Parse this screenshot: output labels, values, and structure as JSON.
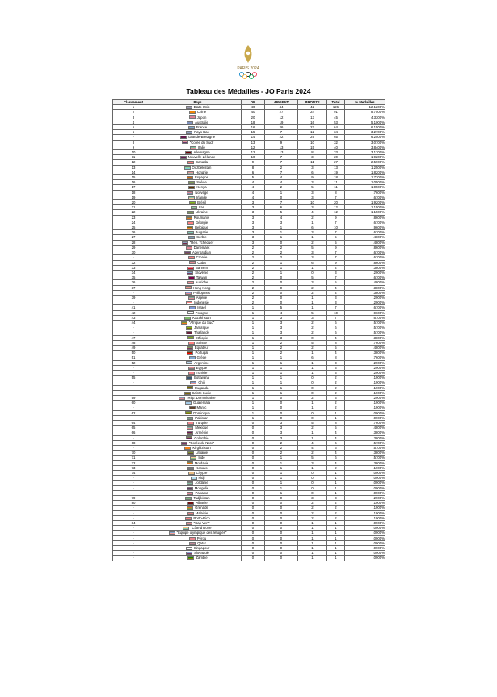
{
  "header": {
    "logo_text": "PARIS 2024",
    "title": "Tableau des Médailles - JO Paris 2024"
  },
  "table": {
    "columns": [
      "Classement",
      "Pays",
      "OR",
      "ARGENT",
      "BRONZE",
      "Total",
      "% Medailles"
    ],
    "rows": [
      [
        "1",
        "Etats-Unis",
        "40",
        "44",
        "42",
        "126",
        "12.1200%"
      ],
      [
        "2",
        "Chine",
        "40",
        "27",
        "24",
        "91",
        "8.7500%"
      ],
      [
        "3",
        "Japon",
        "20",
        "12",
        "13",
        "45",
        "4.3300%"
      ],
      [
        "4",
        "Australie",
        "18",
        "19",
        "16",
        "53",
        "5.1000%"
      ],
      [
        "5",
        "France",
        "16",
        "26",
        "22",
        "64",
        "6.1500%"
      ],
      [
        "6",
        "Pays-Bas",
        "15",
        "7",
        "12",
        "34",
        "3.2700%"
      ],
      [
        "7",
        "Grande-Bretagne",
        "14",
        "22",
        "29",
        "65",
        "6.2500%"
      ],
      [
        "8",
        "\"Corée du Sud\"",
        "13",
        "9",
        "10",
        "32",
        "3.0700%"
      ],
      [
        "9",
        "Italie",
        "12",
        "13",
        "15",
        "40",
        "3.8400%"
      ],
      [
        "10",
        "Allemagne",
        "12",
        "13",
        "8",
        "33",
        "3.1700%"
      ],
      [
        "11",
        "Nouvelle-Zélande",
        "10",
        "7",
        "3",
        "20",
        "1.9200%"
      ],
      [
        "12",
        "Canada",
        "9",
        "7",
        "11",
        "27",
        "2.5900%"
      ],
      [
        "13",
        "Ouzbékistan",
        "8",
        "2",
        "3",
        "13",
        "1.2500%"
      ],
      [
        "14",
        "Hongrie",
        "6",
        "7",
        "6",
        "19",
        "1.8200%"
      ],
      [
        "15",
        "Espagne",
        "5",
        "4",
        "9",
        "18",
        "1.7300%"
      ],
      [
        "16",
        "Suède",
        "4",
        "4",
        "3",
        "11",
        "1.0500%"
      ],
      [
        "17",
        "Kenya",
        "4",
        "2",
        "5",
        "11",
        "1.0500%"
      ],
      [
        "18",
        "Norvège",
        "4",
        "1",
        "3",
        "8",
        ".7600%"
      ],
      [
        "19",
        "Irlande",
        "4",
        "0",
        "3",
        "7",
        ".6700%"
      ],
      [
        "20",
        "Brésil",
        "3",
        "7",
        "10",
        "20",
        "1.9200%"
      ],
      [
        "21",
        "Iran",
        "3",
        "6",
        "3",
        "12",
        "1.1500%"
      ],
      [
        "22",
        "Ukraine",
        "3",
        "5",
        "4",
        "12",
        "1.1500%"
      ],
      [
        "23",
        "Roumanie",
        "3",
        "4",
        "2",
        "9",
        ".8600%"
      ],
      [
        "24",
        "Géorgie",
        "3",
        "3",
        "1",
        "7",
        ".6700%"
      ],
      [
        "25",
        "Belgique",
        "3",
        "1",
        "6",
        "10",
        ".9600%"
      ],
      [
        "26",
        "Bulgarie",
        "3",
        "1",
        "3",
        "7",
        ".6700%"
      ],
      [
        "27",
        "Serbie",
        "3",
        "1",
        "1",
        "5",
        ".4800%"
      ],
      [
        "28",
        "\"Rép. Tchèque\"",
        "3",
        "0",
        "2",
        "5",
        ".4800%"
      ],
      [
        "29",
        "Danemark",
        "2",
        "2",
        "5",
        "9",
        ".8600%"
      ],
      [
        "30",
        "Azerbaïdjan",
        "2",
        "2",
        "3",
        "7",
        ".6700%"
      ],
      [
        "-",
        "Croatie",
        "2",
        "2",
        "3",
        "7",
        ".6700%"
      ],
      [
        "32",
        "Cuba",
        "2",
        "1",
        "6",
        "9",
        ".8600%"
      ],
      [
        "33",
        "Bahreïn",
        "2",
        "1",
        "1",
        "4",
        ".3800%"
      ],
      [
        "34",
        "Slovénie",
        "2",
        "1",
        "0",
        "3",
        ".2900%"
      ],
      [
        "35",
        "Taïwan",
        "2",
        "0",
        "5",
        "7",
        ".6700%"
      ],
      [
        "36",
        "Autriche",
        "2",
        "0",
        "3",
        "5",
        ".4800%"
      ],
      [
        "37",
        "Hong-Kong",
        "2",
        "0",
        "2",
        "4",
        ".3800%"
      ],
      [
        "-",
        "Philippines",
        "2",
        "0",
        "2",
        "4",
        ".3800%"
      ],
      [
        "39",
        "Algérie",
        "2",
        "0",
        "1",
        "3",
        ".2900%"
      ],
      [
        "-",
        "Indonésie",
        "2",
        "0",
        "1",
        "3",
        ".2900%"
      ],
      [
        "41",
        "Israël",
        "1",
        "5",
        "1",
        "7",
        ".6700%"
      ],
      [
        "42",
        "Pologne",
        "1",
        "4",
        "5",
        "10",
        ".9600%"
      ],
      [
        "43",
        "Kazakhstan",
        "1",
        "3",
        "3",
        "7",
        ".6700%"
      ],
      [
        "44",
        "\"Afrique du Sud\"",
        "1",
        "3",
        "2",
        "6",
        ".5700%"
      ],
      [
        "-",
        "Jamaïque",
        "1",
        "3",
        "2",
        "6",
        ".5700%"
      ],
      [
        "-",
        "Thaïlande",
        "1",
        "3",
        "2",
        "6",
        ".5700%"
      ],
      [
        "47",
        "Ethiopie",
        "1",
        "3",
        "0",
        "4",
        ".3800%"
      ],
      [
        "48",
        "Suisse",
        "1",
        "2",
        "5",
        "8",
        ".7600%"
      ],
      [
        "49",
        "Equateur",
        "1",
        "2",
        "2",
        "5",
        ".4800%"
      ],
      [
        "50",
        "Portugal",
        "1",
        "2",
        "1",
        "4",
        ".3800%"
      ],
      [
        "51",
        "Grèce",
        "1",
        "1",
        "6",
        "8",
        ".7600%"
      ],
      [
        "52",
        "Argentine",
        "1",
        "1",
        "1",
        "3",
        ".2900%"
      ],
      [
        "-",
        "Egypte",
        "1",
        "1",
        "1",
        "3",
        ".2900%"
      ],
      [
        "-",
        "Tunisie",
        "1",
        "1",
        "1",
        "3",
        ".2900%"
      ],
      [
        "55",
        "Botswana",
        "1",
        "1",
        "0",
        "2",
        ".1900%"
      ],
      [
        "-",
        "Chili",
        "1",
        "1",
        "0",
        "2",
        ".1900%"
      ],
      [
        "-",
        "Ouganda",
        "1",
        "1",
        "0",
        "2",
        ".1900%"
      ],
      [
        "-",
        "Sainte-Lucie",
        "1",
        "1",
        "0",
        "2",
        ".1900%"
      ],
      [
        "59",
        "\"Rép. Dominicaine\"",
        "1",
        "0",
        "2",
        "3",
        ".2900%"
      ],
      [
        "60",
        "Guatemala",
        "1",
        "0",
        "1",
        "2",
        ".1900%"
      ],
      [
        "-",
        "Maroc",
        "1",
        "0",
        "1",
        "2",
        ".1900%"
      ],
      [
        "62",
        "Dominique",
        "1",
        "0",
        "0",
        "1",
        ".0900%"
      ],
      [
        "-",
        "Pakistan",
        "1",
        "0",
        "0",
        "1",
        ".0900%"
      ],
      [
        "64",
        "Turquie",
        "0",
        "3",
        "5",
        "8",
        ".7600%"
      ],
      [
        "65",
        "Mexique",
        "0",
        "3",
        "2",
        "5",
        ".4800%"
      ],
      [
        "66",
        "Arménie",
        "0",
        "3",
        "1",
        "4",
        ".3800%"
      ],
      [
        "-",
        "Colombie",
        "0",
        "3",
        "1",
        "4",
        ".3800%"
      ],
      [
        "68",
        "\"Corée du Nord\"",
        "0",
        "2",
        "4",
        "6",
        ".5700%"
      ],
      [
        "-",
        "Kirghizistan",
        "0",
        "2",
        "4",
        "6",
        ".5700%"
      ],
      [
        "70",
        "Lituanie",
        "0",
        "2",
        "2",
        "4",
        ".3800%"
      ],
      [
        "71",
        "Inde",
        "0",
        "1",
        "5",
        "6",
        ".5700%"
      ],
      [
        "72",
        "Moldavie",
        "0",
        "1",
        "3",
        "4",
        ".3800%"
      ],
      [
        "73",
        "Kosovo",
        "0",
        "1",
        "1",
        "2",
        ".1900%"
      ],
      [
        "74",
        "Chypre",
        "0",
        "1",
        "0",
        "1",
        ".0900%"
      ],
      [
        "-",
        "Fidji",
        "0",
        "1",
        "0",
        "1",
        ".0900%"
      ],
      [
        "-",
        "Jordanie",
        "0",
        "1",
        "0",
        "1",
        ".0900%"
      ],
      [
        "-",
        "Mongolie",
        "0",
        "1",
        "0",
        "1",
        ".0900%"
      ],
      [
        "-",
        "Panama",
        "0",
        "1",
        "0",
        "1",
        ".0900%"
      ],
      [
        "79",
        "Tadjikistan",
        "0",
        "0",
        "3",
        "3",
        ".2900%"
      ],
      [
        "80",
        "Albanie",
        "0",
        "0",
        "2",
        "2",
        ".1900%"
      ],
      [
        "-",
        "Grenade",
        "0",
        "0",
        "2",
        "2",
        ".1900%"
      ],
      [
        "-",
        "Malaisie",
        "0",
        "0",
        "2",
        "2",
        ".1900%"
      ],
      [
        "-",
        "Porto-Rico",
        "0",
        "0",
        "2",
        "2",
        ".1900%"
      ],
      [
        "84",
        "\"Cap Vert\"",
        "0",
        "0",
        "1",
        "1",
        ".0900%"
      ],
      [
        "-",
        "\"Côte d'Ivoire\"",
        "0",
        "0",
        "1",
        "1",
        ".0900%"
      ],
      [
        "-",
        "\"Equipe olympique des réfugiés\"",
        "0",
        "0",
        "1",
        "1",
        ".0900%"
      ],
      [
        "-",
        "Pérou",
        "0",
        "0",
        "1",
        "1",
        ".0900%"
      ],
      [
        "-",
        "Qatar",
        "0",
        "0",
        "1",
        "1",
        ".0900%"
      ],
      [
        "-",
        "Singapour",
        "0",
        "0",
        "1",
        "1",
        ".0900%"
      ],
      [
        "-",
        "Slovaquie",
        "0",
        "0",
        "1",
        "1",
        ".0900%"
      ],
      [
        "-",
        "Zambie",
        "0",
        "0",
        "1",
        "1",
        ".0900%"
      ]
    ],
    "flags": [
      [
        "#b22234",
        "#ffffff",
        "#3c3b6e"
      ],
      [
        "#de2910",
        "#ffde00",
        "#de2910"
      ],
      [
        "#ffffff",
        "#bc002d",
        "#ffffff"
      ],
      [
        "#00247d",
        "#ffffff",
        "#00247d"
      ],
      [
        "#0055a4",
        "#ffffff",
        "#ef4135"
      ],
      [
        "#ae1c28",
        "#ffffff",
        "#21468b"
      ],
      [
        "#012169",
        "#c8102e",
        "#012169"
      ],
      [
        "#ffffff",
        "#cd2e3a",
        "#0047a0"
      ],
      [
        "#009246",
        "#ffffff",
        "#ce2b37"
      ],
      [
        "#000000",
        "#dd0000",
        "#ffce00"
      ],
      [
        "#00247d",
        "#cc142b",
        "#00247d"
      ],
      [
        "#ff0000",
        "#ffffff",
        "#ff0000"
      ],
      [
        "#1eb53a",
        "#ffffff",
        "#0099b5"
      ],
      [
        "#ce2939",
        "#ffffff",
        "#477050"
      ],
      [
        "#aa151b",
        "#f1bf00",
        "#aa151b"
      ],
      [
        "#006aa7",
        "#fecc00",
        "#006aa7"
      ],
      [
        "#000000",
        "#bb0000",
        "#006600"
      ],
      [
        "#ba0c2f",
        "#ffffff",
        "#00205b"
      ],
      [
        "#169b62",
        "#ffffff",
        "#ff883e"
      ],
      [
        "#009c3b",
        "#ffdf00",
        "#002776"
      ],
      [
        "#239f40",
        "#ffffff",
        "#da0000"
      ],
      [
        "#0057b7",
        "#0057b7",
        "#ffd700"
      ],
      [
        "#002b7f",
        "#fcd116",
        "#ce1126"
      ],
      [
        "#ffffff",
        "#ff0000",
        "#ffffff"
      ],
      [
        "#000000",
        "#fdda24",
        "#ef3340"
      ],
      [
        "#ffffff",
        "#00966e",
        "#d62612"
      ],
      [
        "#c6363c",
        "#0c4076",
        "#ffffff"
      ],
      [
        "#ffffff",
        "#11457e",
        "#d7141a"
      ],
      [
        "#c8102e",
        "#ffffff",
        "#c8102e"
      ],
      [
        "#0092bc",
        "#e4002b",
        "#00af66"
      ],
      [
        "#ff0000",
        "#ffffff",
        "#171796"
      ],
      [
        "#002a8f",
        "#ffffff",
        "#cf142b"
      ],
      [
        "#ffffff",
        "#ce1126",
        "#ce1126"
      ],
      [
        "#ffffff",
        "#005da4",
        "#ed1c24"
      ],
      [
        "#fe0000",
        "#000095",
        "#fe0000"
      ],
      [
        "#ed2939",
        "#ffffff",
        "#ed2939"
      ],
      [
        "#de2910",
        "#ffffff",
        "#de2910"
      ],
      [
        "#0038a8",
        "#ffffff",
        "#ce1126"
      ],
      [
        "#006233",
        "#ffffff",
        "#d21034"
      ],
      [
        "#ff0000",
        "#ffffff",
        "#ffffff"
      ],
      [
        "#ffffff",
        "#0038b8",
        "#ffffff"
      ],
      [
        "#ffffff",
        "#ffffff",
        "#dc143c"
      ],
      [
        "#00afca",
        "#fec50c",
        "#00afca"
      ],
      [
        "#007a4d",
        "#ffb612",
        "#de3831"
      ],
      [
        "#009b3a",
        "#fed100",
        "#000000"
      ],
      [
        "#a51931",
        "#2d2a4a",
        "#a51931"
      ],
      [
        "#078930",
        "#fcdd09",
        "#da121a"
      ],
      [
        "#ff0000",
        "#ffffff",
        "#ff0000"
      ],
      [
        "#ffdd00",
        "#034ea2",
        "#ed1c24"
      ],
      [
        "#006600",
        "#ff0000",
        "#ff0000"
      ],
      [
        "#0d5eaf",
        "#ffffff",
        "#0d5eaf"
      ],
      [
        "#74acdf",
        "#ffffff",
        "#74acdf"
      ],
      [
        "#ce1126",
        "#ffffff",
        "#000000"
      ],
      [
        "#e70013",
        "#ffffff",
        "#e70013"
      ],
      [
        "#75aadb",
        "#000000",
        "#75aadb"
      ],
      [
        "#0039a6",
        "#ffffff",
        "#d52b1e"
      ],
      [
        "#000000",
        "#fcdc04",
        "#d90000"
      ],
      [
        "#65cfff",
        "#fcd116",
        "#000000"
      ],
      [
        "#002d62",
        "#ffffff",
        "#ce1126"
      ],
      [
        "#4997d0",
        "#ffffff",
        "#4997d0"
      ],
      [
        "#c1272d",
        "#006233",
        "#c1272d"
      ],
      [
        "#006b3f",
        "#fcd116",
        "#000000"
      ],
      [
        "#01411c",
        "#ffffff",
        "#01411c"
      ],
      [
        "#e30a17",
        "#ffffff",
        "#e30a17"
      ],
      [
        "#006847",
        "#ffffff",
        "#ce1126"
      ],
      [
        "#d90012",
        "#0033a0",
        "#f2a800"
      ],
      [
        "#fcd116",
        "#003893",
        "#ce1126"
      ],
      [
        "#024fa2",
        "#ed1c27",
        "#024fa2"
      ],
      [
        "#e8112d",
        "#ffef00",
        "#e8112d"
      ],
      [
        "#fdb913",
        "#006a44",
        "#c1272d"
      ],
      [
        "#ff9933",
        "#ffffff",
        "#138808"
      ],
      [
        "#003da5",
        "#ffd200",
        "#cc092f"
      ],
      [
        "#244aa5",
        "#d0a650",
        "#244aa5"
      ],
      [
        "#ffffff",
        "#d57800",
        "#ffffff"
      ],
      [
        "#68bfe5",
        "#ffffff",
        "#68bfe5"
      ],
      [
        "#000000",
        "#ffffff",
        "#007a3d"
      ],
      [
        "#c4272f",
        "#015197",
        "#c4272f"
      ],
      [
        "#005293",
        "#ffffff",
        "#d21034"
      ],
      [
        "#cc0000",
        "#ffffff",
        "#006600"
      ],
      [
        "#e41e20",
        "#000000",
        "#e41e20"
      ],
      [
        "#ce1126",
        "#fcd116",
        "#007a5e"
      ],
      [
        "#cc0001",
        "#ffffff",
        "#010066"
      ],
      [
        "#ed0000",
        "#ffffff",
        "#0050f0"
      ],
      [
        "#003893",
        "#ffffff",
        "#cf2027"
      ],
      [
        "#f77f00",
        "#ffffff",
        "#009e60"
      ],
      [
        "#0055a4",
        "#ffffff",
        "#ef4135"
      ],
      [
        "#d91023",
        "#ffffff",
        "#d91023"
      ],
      [
        "#ffffff",
        "#8a1538",
        "#8a1538"
      ],
      [
        "#ef3340",
        "#ffffff",
        "#ffffff"
      ],
      [
        "#ffffff",
        "#0b4ea2",
        "#ee1c25"
      ],
      [
        "#198a00",
        "#198a00",
        "#ef7d00"
      ]
    ]
  }
}
